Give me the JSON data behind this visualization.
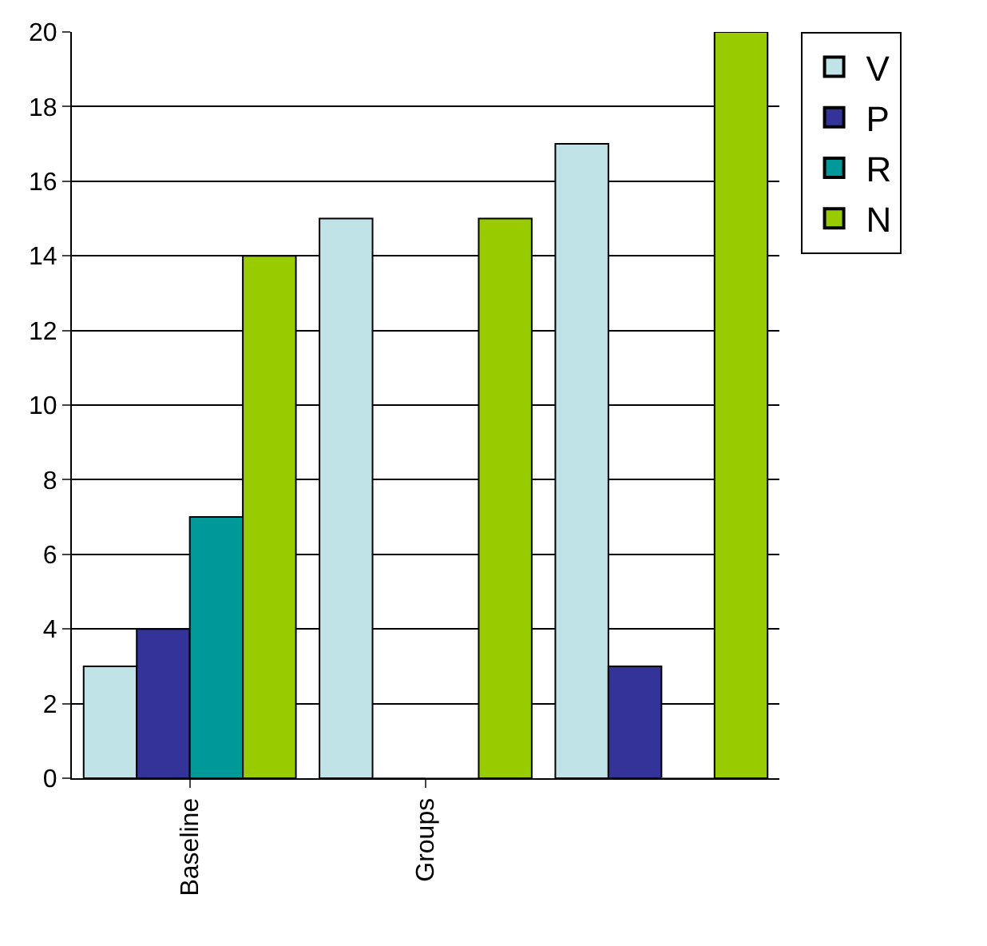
{
  "chart_data": {
    "type": "bar",
    "categories": [
      "Baseline",
      "Groups",
      null
    ],
    "series": [
      {
        "name": "V",
        "color": "#bfe3e6",
        "values": [
          3,
          15,
          17
        ]
      },
      {
        "name": "P",
        "color": "#333399",
        "values": [
          4,
          0,
          3
        ]
      },
      {
        "name": "R",
        "color": "#009999",
        "values": [
          7,
          0,
          0
        ]
      },
      {
        "name": "N",
        "color": "#99cc00",
        "values": [
          14,
          15,
          20
        ]
      }
    ],
    "ylim": [
      0,
      20
    ],
    "yticks": [
      0,
      2,
      4,
      6,
      8,
      10,
      12,
      14,
      16,
      18,
      20
    ],
    "grid": "y",
    "legend": "top right"
  }
}
